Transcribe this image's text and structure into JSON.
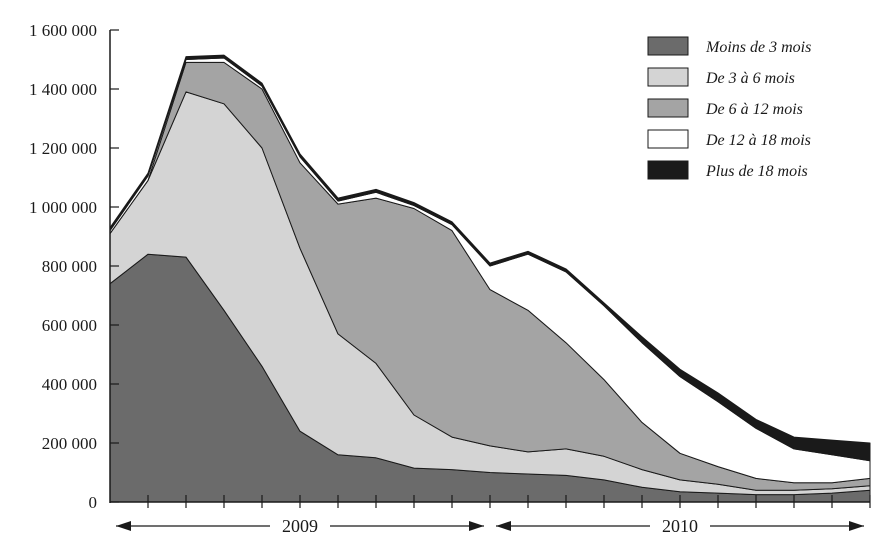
{
  "chart_data": {
    "type": "area",
    "stacked": true,
    "y_ticks": [
      0,
      200000,
      400000,
      600000,
      800000,
      1000000,
      1200000,
      1400000,
      1600000
    ],
    "y_tick_labels": [
      "0",
      "200 000",
      "400 000",
      "600 000",
      "800 000",
      "1 000 000",
      "1 200 000",
      "1 400 000",
      "1 600 000"
    ],
    "ylim": [
      0,
      1600000
    ],
    "x_periods": 20,
    "year_spans": [
      {
        "label": "2009",
        "start": 0,
        "end": 10
      },
      {
        "label": "2010",
        "start": 10,
        "end": 20
      }
    ],
    "legend_position": "top-right",
    "grid": false,
    "series": [
      {
        "name": "Moins de 3 mois",
        "color": "#6b6b6b",
        "values": [
          740000,
          840000,
          830000,
          650000,
          460000,
          240000,
          160000,
          150000,
          115000,
          110000,
          100000,
          95000,
          90000,
          75000,
          50000,
          35000,
          30000,
          25000,
          25000,
          30000,
          40000
        ]
      },
      {
        "name": "De 3 à 6 mois",
        "color": "#d4d4d4",
        "values": [
          170000,
          250000,
          560000,
          700000,
          740000,
          620000,
          410000,
          320000,
          180000,
          110000,
          90000,
          75000,
          90000,
          80000,
          60000,
          40000,
          30000,
          15000,
          15000,
          15000,
          15000
        ]
      },
      {
        "name": "De 6 à 12 mois",
        "color": "#a4a4a4",
        "values": [
          0,
          0,
          100000,
          140000,
          200000,
          290000,
          440000,
          560000,
          700000,
          700000,
          530000,
          480000,
          360000,
          260000,
          160000,
          90000,
          60000,
          40000,
          25000,
          20000,
          25000
        ]
      },
      {
        "name": "De 12 à 18 mois",
        "color": "#ffffff",
        "values": [
          10000,
          15000,
          10000,
          15000,
          10000,
          20000,
          10000,
          20000,
          10000,
          20000,
          80000,
          190000,
          240000,
          250000,
          270000,
          260000,
          220000,
          170000,
          115000,
          95000,
          60000
        ]
      },
      {
        "name": "Plus de 18 mois",
        "color": "#1a1a1a",
        "values": [
          10000,
          10000,
          10000,
          10000,
          10000,
          10000,
          10000,
          10000,
          10000,
          10000,
          10000,
          10000,
          10000,
          10000,
          20000,
          25000,
          30000,
          30000,
          40000,
          50000,
          60000
        ]
      }
    ]
  }
}
